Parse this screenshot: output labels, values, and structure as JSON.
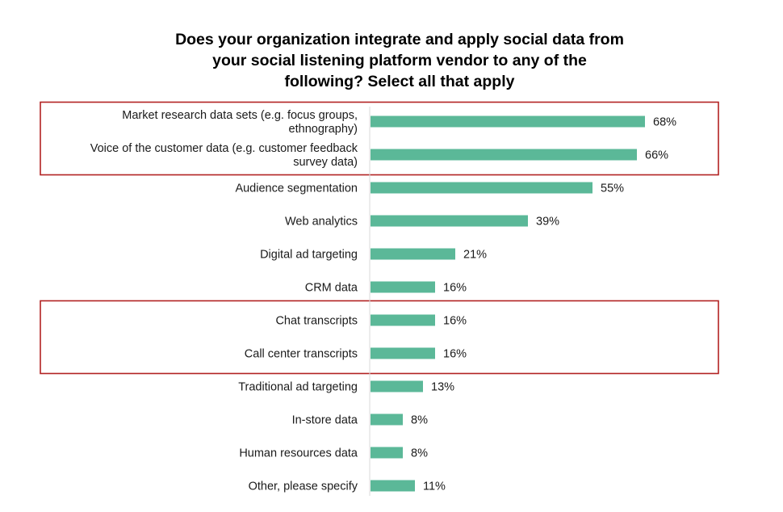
{
  "chart_data": {
    "type": "bar",
    "orientation": "horizontal",
    "title": [
      "Does your organization integrate and apply social data from",
      "your social listening platform vendor to any of the",
      "following? Select all that apply"
    ],
    "categories": [
      [
        "Market research data sets (e.g. focus groups,",
        "ethnography)"
      ],
      [
        "Voice of the customer data (e.g. customer feedback",
        "survey data)"
      ],
      [
        "Audience segmentation"
      ],
      [
        "Web analytics"
      ],
      [
        "Digital ad targeting"
      ],
      [
        "CRM data"
      ],
      [
        "Chat transcripts"
      ],
      [
        "Call center transcripts"
      ],
      [
        "Traditional ad targeting"
      ],
      [
        "In-store data"
      ],
      [
        "Human resources data"
      ],
      [
        "Other, please specify"
      ]
    ],
    "values": [
      68,
      66,
      55,
      39,
      21,
      16,
      16,
      16,
      13,
      8,
      8,
      11
    ],
    "value_labels": [
      "68%",
      "66%",
      "55%",
      "39%",
      "21%",
      "16%",
      "16%",
      "16%",
      "13%",
      "8%",
      "8%",
      "11%"
    ],
    "unit": "%",
    "xlim": [
      0,
      100
    ],
    "bar_color": "#5bb898",
    "highlight_color": "#b22222",
    "highlight_groups": [
      [
        0,
        1
      ],
      [
        6,
        7
      ]
    ],
    "grid": false,
    "legend": "none"
  }
}
